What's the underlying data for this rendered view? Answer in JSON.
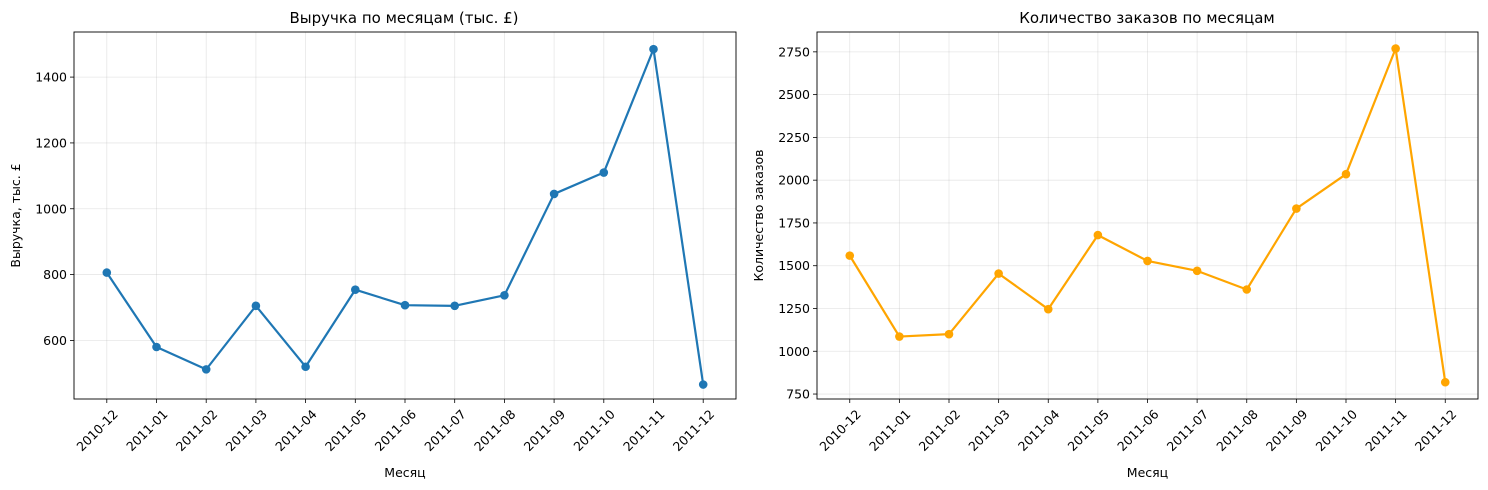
{
  "chart_data": [
    {
      "type": "line",
      "title": "Выручка по месяцам (тыс. £)",
      "xlabel": "Месяц",
      "ylabel": "Выручка, тыс. £",
      "categories": [
        "2010-12",
        "2011-01",
        "2011-02",
        "2011-03",
        "2011-04",
        "2011-05",
        "2011-06",
        "2011-07",
        "2011-08",
        "2011-09",
        "2011-10",
        "2011-11",
        "2011-12"
      ],
      "series": [
        {
          "values": [
            806,
            580,
            512,
            705,
            520,
            754,
            707,
            705,
            737,
            1045,
            1110,
            1485,
            466
          ],
          "color": "#1f77b4"
        }
      ],
      "ylim": [
        422,
        1537
      ],
      "yticks": [
        600,
        800,
        1000,
        1200,
        1400
      ],
      "grid": true
    },
    {
      "type": "line",
      "title": "Количество заказов по месяцам",
      "xlabel": "Месяц",
      "ylabel": "Количество заказов",
      "categories": [
        "2010-12",
        "2011-01",
        "2011-02",
        "2011-03",
        "2011-04",
        "2011-05",
        "2011-06",
        "2011-07",
        "2011-08",
        "2011-09",
        "2011-10",
        "2011-11",
        "2011-12"
      ],
      "series": [
        {
          "values": [
            1559,
            1086,
            1100,
            1454,
            1246,
            1679,
            1528,
            1470,
            1361,
            1834,
            2035,
            2769,
            819
          ],
          "color": "#ffa500"
        }
      ],
      "ylim": [
        721,
        2866
      ],
      "yticks": [
        750,
        1000,
        1250,
        1500,
        1750,
        2000,
        2250,
        2500,
        2750
      ],
      "grid": true
    }
  ]
}
